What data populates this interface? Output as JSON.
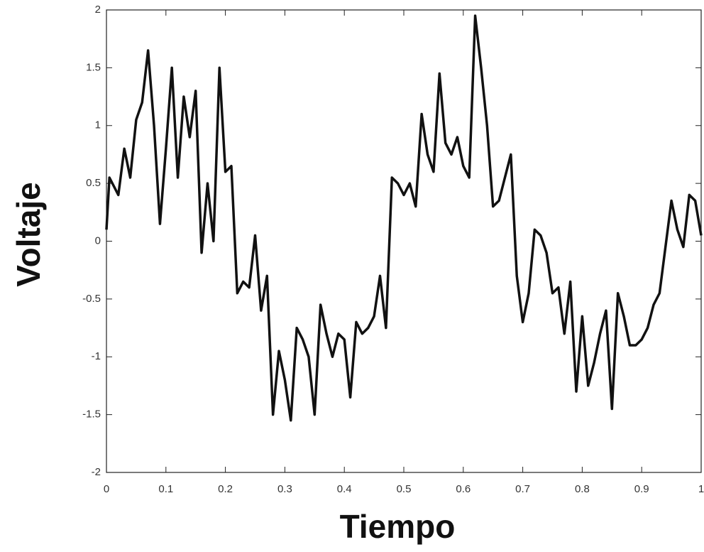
{
  "chart_data": {
    "type": "line",
    "xlabel": "Tiempo",
    "ylabel": "Voltaje",
    "color": "#111111",
    "x": [
      0,
      0.005,
      0.01,
      0.02,
      0.03,
      0.04,
      0.05,
      0.06,
      0.07,
      0.08,
      0.09,
      0.1,
      0.11,
      0.12,
      0.13,
      0.14,
      0.15,
      0.16,
      0.17,
      0.18,
      0.19,
      0.2,
      0.21,
      0.22,
      0.23,
      0.24,
      0.25,
      0.26,
      0.27,
      0.28,
      0.29,
      0.3,
      0.31,
      0.32,
      0.33,
      0.34,
      0.35,
      0.36,
      0.37,
      0.38,
      0.39,
      0.4,
      0.41,
      0.42,
      0.43,
      0.44,
      0.45,
      0.46,
      0.47,
      0.48,
      0.49,
      0.5,
      0.51,
      0.52,
      0.53,
      0.54,
      0.55,
      0.56,
      0.57,
      0.58,
      0.59,
      0.6,
      0.61,
      0.62,
      0.63,
      0.64,
      0.65,
      0.66,
      0.67,
      0.68,
      0.69,
      0.7,
      0.71,
      0.72,
      0.73,
      0.74,
      0.75,
      0.76,
      0.77,
      0.78,
      0.79,
      0.8,
      0.81,
      0.82,
      0.83,
      0.84,
      0.85,
      0.86,
      0.87,
      0.88,
      0.89,
      0.9,
      0.91,
      0.92,
      0.93,
      0.94,
      0.95,
      0.96,
      0.97,
      0.98,
      0.99,
      1.0
    ],
    "values": [
      0.1,
      0.55,
      0.5,
      0.4,
      0.8,
      0.55,
      1.05,
      1.2,
      1.65,
      1.0,
      0.15,
      0.8,
      1.5,
      0.55,
      1.25,
      0.9,
      1.3,
      -0.1,
      0.5,
      0.0,
      1.5,
      0.6,
      0.65,
      -0.45,
      -0.35,
      -0.4,
      0.05,
      -0.6,
      -0.3,
      -1.5,
      -0.95,
      -1.2,
      -1.55,
      -0.75,
      -0.85,
      -1.0,
      -1.5,
      -0.55,
      -0.8,
      -1.0,
      -0.8,
      -0.85,
      -1.35,
      -0.7,
      -0.8,
      -0.75,
      -0.65,
      -0.3,
      -0.75,
      0.55,
      0.5,
      0.4,
      0.5,
      0.3,
      1.1,
      0.75,
      0.6,
      1.45,
      0.85,
      0.75,
      0.9,
      0.65,
      0.55,
      1.95,
      1.5,
      1.0,
      0.3,
      0.35,
      0.55,
      0.75,
      -0.3,
      -0.7,
      -0.45,
      0.1,
      0.05,
      -0.1,
      -0.45,
      -0.4,
      -0.8,
      -0.35,
      -1.3,
      -0.65,
      -1.25,
      -1.05,
      -0.8,
      -0.6,
      -1.45,
      -0.45,
      -0.65,
      -0.9,
      -0.9,
      -0.85,
      -0.75,
      -0.55,
      -0.45,
      -0.05,
      0.35,
      0.1,
      -0.05,
      0.4,
      0.35,
      0.05
    ],
    "xlim": [
      0,
      1
    ],
    "ylim": [
      -2,
      2
    ],
    "xticks": [
      0,
      0.1,
      0.2,
      0.3,
      0.4,
      0.5,
      0.6,
      0.7,
      0.8,
      0.9,
      1
    ],
    "yticks": [
      -2,
      -1.5,
      -1,
      -0.5,
      0,
      0.5,
      1,
      1.5,
      2
    ]
  }
}
